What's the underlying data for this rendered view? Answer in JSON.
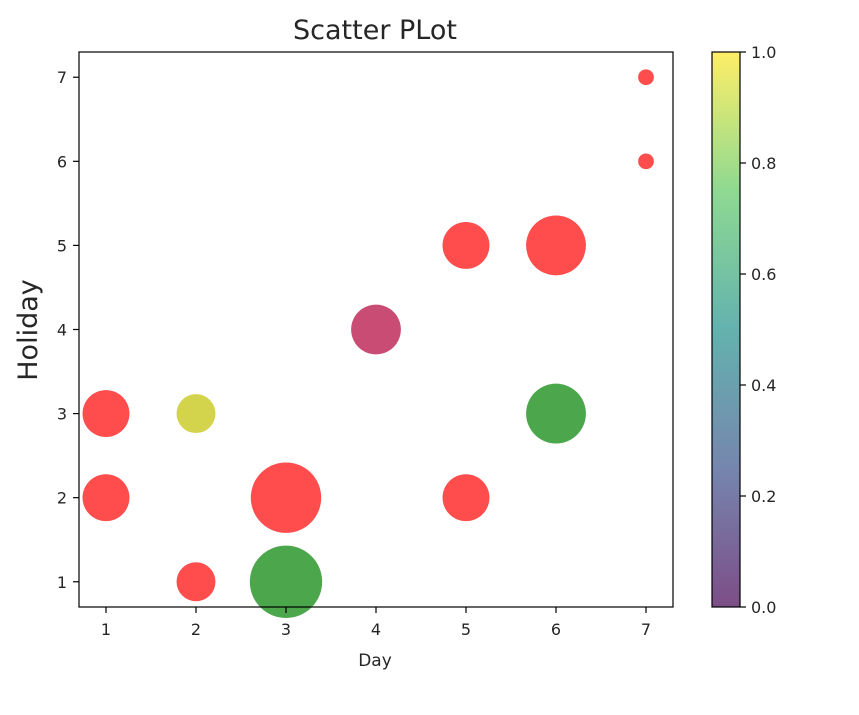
{
  "chart_data": {
    "type": "scatter",
    "title": "Scatter PLot",
    "xlabel": "Day",
    "ylabel": "Holiday",
    "xlim": [
      0.7,
      7.3
    ],
    "ylim": [
      0.7,
      7.3
    ],
    "xticks": [
      "1",
      "2",
      "3",
      "4",
      "5",
      "6",
      "7"
    ],
    "yticks": [
      "1",
      "2",
      "3",
      "4",
      "5",
      "6",
      "7"
    ],
    "grid": false,
    "point_alpha": 0.7,
    "points": [
      {
        "x": 1,
        "y": 3,
        "size": 1600,
        "color": "#ff0000"
      },
      {
        "x": 1,
        "y": 2,
        "size": 1600,
        "color": "#ff0000"
      },
      {
        "x": 2,
        "y": 3,
        "size": 1100,
        "color": "#c0c000"
      },
      {
        "x": 2,
        "y": 1,
        "size": 1100,
        "color": "#ff0000"
      },
      {
        "x": 3,
        "y": 2,
        "size": 3600,
        "color": "#ff0000"
      },
      {
        "x": 3,
        "y": 1,
        "size": 3800,
        "color": "#008000"
      },
      {
        "x": 4,
        "y": 4,
        "size": 1800,
        "color": "#b00038"
      },
      {
        "x": 5,
        "y": 5,
        "size": 1600,
        "color": "#ff0000"
      },
      {
        "x": 5,
        "y": 2,
        "size": 1600,
        "color": "#ff0000"
      },
      {
        "x": 6,
        "y": 5,
        "size": 2600,
        "color": "#ff0000"
      },
      {
        "x": 6,
        "y": 3,
        "size": 2600,
        "color": "#008000"
      },
      {
        "x": 7,
        "y": 7,
        "size": 180,
        "color": "#ff0000"
      },
      {
        "x": 7,
        "y": 6,
        "size": 180,
        "color": "#ff0000"
      }
    ],
    "colorbar": {
      "colormap": "viridis",
      "alpha": 0.7,
      "range": [
        0.0,
        1.0
      ],
      "ticks": [
        "0.0",
        "0.2",
        "0.4",
        "0.6",
        "0.8",
        "1.0"
      ],
      "stops": [
        "#440154",
        "#3b528b",
        "#21918c",
        "#5ec962",
        "#fde725"
      ]
    }
  }
}
